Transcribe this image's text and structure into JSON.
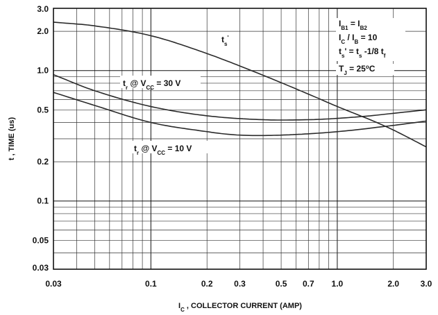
{
  "chart_data": {
    "type": "line",
    "x_scale": "log",
    "y_scale": "log",
    "xlim": [
      0.03,
      3.0
    ],
    "ylim": [
      0.03,
      3.0
    ],
    "grid": true,
    "xlabel_parts": {
      "main": "I",
      "sub": "C",
      "rest": " , COLLECTOR CURRENT (AMP)"
    },
    "ylabel": "t , TIME (us)",
    "x_ticks": [
      "0.03",
      "0.1",
      "0.2",
      "0.3",
      "0.5",
      "0.7",
      "1.0",
      "2.0",
      "3.0"
    ],
    "x_tick_values": [
      0.03,
      0.1,
      0.2,
      0.3,
      0.5,
      0.7,
      1.0,
      2.0,
      3.0
    ],
    "y_ticks": [
      "3.0",
      "2.0",
      "1.0",
      "0.5",
      "0.2",
      "0.1",
      "0.05",
      "0.03"
    ],
    "y_tick_values": [
      3.0,
      2.0,
      1.0,
      0.5,
      0.2,
      0.1,
      0.05,
      0.03
    ],
    "series": [
      {
        "key": "ts",
        "x": [
          0.03,
          0.05,
          0.1,
          0.2,
          0.4,
          0.7,
          1.0,
          1.5,
          2.0,
          3.0
        ],
        "y": [
          2.35,
          2.2,
          1.85,
          1.35,
          0.92,
          0.66,
          0.53,
          0.42,
          0.35,
          0.26
        ]
      },
      {
        "key": "tr30",
        "x": [
          0.03,
          0.05,
          0.1,
          0.2,
          0.4,
          0.7,
          1.0,
          1.5,
          2.0,
          3.0
        ],
        "y": [
          0.93,
          0.7,
          0.53,
          0.45,
          0.42,
          0.42,
          0.43,
          0.45,
          0.47,
          0.5
        ]
      },
      {
        "key": "tr10",
        "x": [
          0.03,
          0.05,
          0.1,
          0.2,
          0.3,
          0.5,
          1.0,
          2.0,
          3.0
        ],
        "y": [
          0.68,
          0.54,
          0.4,
          0.34,
          0.32,
          0.32,
          0.34,
          0.38,
          0.41
        ]
      }
    ],
    "annotations": {
      "ts_label": {
        "t": "t",
        "sub": "s",
        "sup": "'"
      },
      "tr30_label": {
        "t": "t",
        "sub": "r",
        "mid": " @ V",
        "sub2": "CC",
        "rest": " = 30 V"
      },
      "tr10_label": {
        "t": "t",
        "sub": "r",
        "mid": " @ V",
        "sub2": "CC",
        "rest": " = 10 V"
      },
      "conditions": [
        {
          "parts": [
            [
              "I",
              ""
            ],
            [
              "B1",
              "sub"
            ],
            [
              " = I",
              ""
            ],
            [
              "B2",
              "sub"
            ]
          ]
        },
        {
          "parts": [
            [
              "I",
              ""
            ],
            [
              "C",
              "sub"
            ],
            [
              " / I",
              ""
            ],
            [
              "B",
              "sub"
            ],
            [
              " = 10",
              ""
            ]
          ]
        },
        {
          "parts": [
            [
              "t",
              ""
            ],
            [
              "s",
              "sub"
            ],
            [
              "' = t",
              ""
            ],
            [
              "s",
              "sub"
            ],
            [
              " -1/8 t",
              ""
            ],
            [
              "f",
              "sub"
            ]
          ]
        },
        {
          "parts": [
            [
              "T",
              ""
            ],
            [
              "J",
              "sub"
            ],
            [
              " = 25",
              ""
            ],
            [
              "o",
              "sup"
            ],
            [
              "C",
              ""
            ]
          ]
        }
      ]
    }
  }
}
